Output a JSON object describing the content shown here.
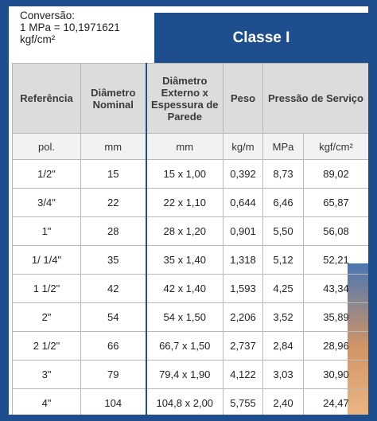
{
  "conversion": {
    "line1": "Conversão:",
    "line2": "1 MPa = 10,1971621",
    "line3": "kgf/cm²"
  },
  "class_title": "Classe I",
  "headers": {
    "referencia": "Referência",
    "diametro_nominal": "Diâmetro Nominal",
    "diametro_externo": "Diâmetro Externo x Espessura de Parede",
    "peso": "Peso",
    "pressao": "Pressão de Serviço"
  },
  "units": [
    "pol.",
    "mm",
    "mm",
    "kg/m",
    "MPa",
    "kgf/cm²"
  ],
  "rows": [
    [
      "1/2\"",
      "15",
      "15 x 1,00",
      "0,392",
      "8,73",
      "89,02"
    ],
    [
      "3/4\"",
      "22",
      "22 x 1,10",
      "0,644",
      "6,46",
      "65,87"
    ],
    [
      "1\"",
      "28",
      "28 x 1,20",
      "0,901",
      "5,50",
      "56,08"
    ],
    [
      "1/ 1/4\"",
      "35",
      "35 x 1,40",
      "1,318",
      "5,12",
      "52,21"
    ],
    [
      "1 1/2\"",
      "42",
      "42 x 1,40",
      "1,593",
      "4,25",
      "43,34"
    ],
    [
      "2\"",
      "54",
      "54 x 1,50",
      "2,206",
      "3,52",
      "35,89"
    ],
    [
      "2 1/2\"",
      "66",
      "66,7 x 1,50",
      "2,737",
      "2,84",
      "28,96"
    ],
    [
      "3\"",
      "79",
      "79,4 x 1,90",
      "4,122",
      "3,03",
      "30,90"
    ],
    [
      "4\"",
      "104",
      "104,8 x 2,00",
      "5,755",
      "2,40",
      "24,47"
    ]
  ],
  "colors": {
    "brand_blue": "#1f4e8f",
    "header_gray": "#dcdcdc"
  }
}
